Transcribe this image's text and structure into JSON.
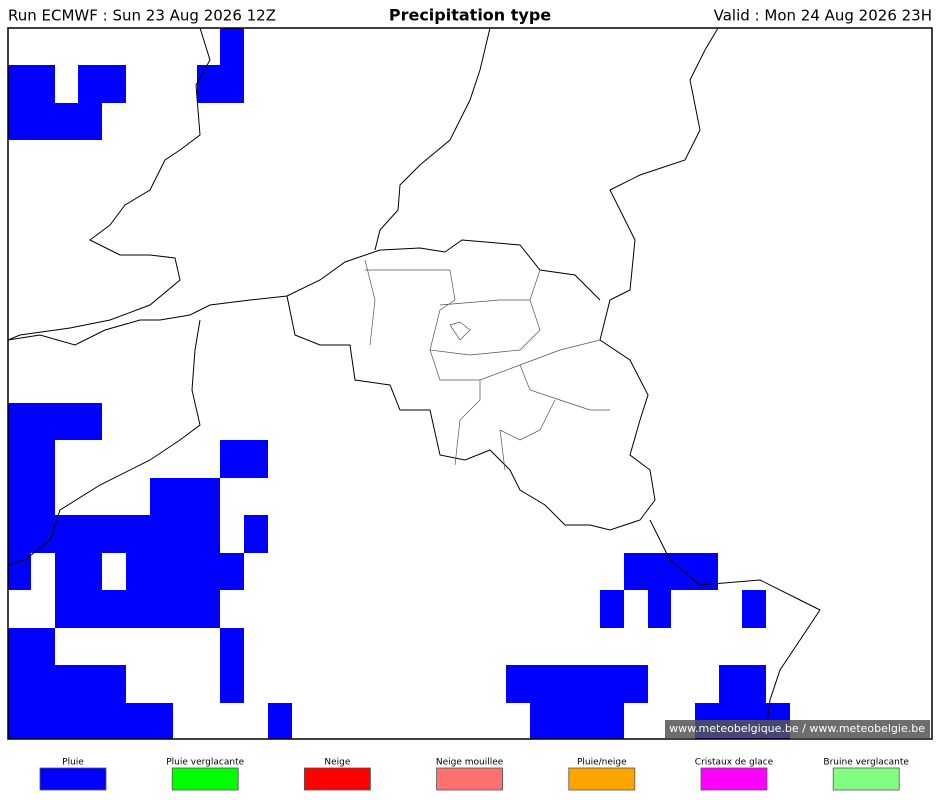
{
  "header": {
    "run": "Run ECMWF : Sun 23 Aug 2026 12Z",
    "title": "Precipitation type",
    "valid": "Valid : Mon 24 Aug 2026 23H"
  },
  "credit": "© www.meteobelgique.be / www.meteobelgie.be",
  "legend": [
    {
      "label": "Pluie",
      "color": "#0000ff"
    },
    {
      "label": "Pluie verglacante",
      "color": "#00ff00"
    },
    {
      "label": "Neige",
      "color": "#ff0000"
    },
    {
      "label": "Neige mouillee",
      "color": "#ff7070"
    },
    {
      "label": "Pluie/neige",
      "color": "#ffa500"
    },
    {
      "label": "Cristaux de glace",
      "color": "#ff00ff"
    },
    {
      "label": "Bruine verglacante",
      "color": "#80ff80"
    }
  ]
}
